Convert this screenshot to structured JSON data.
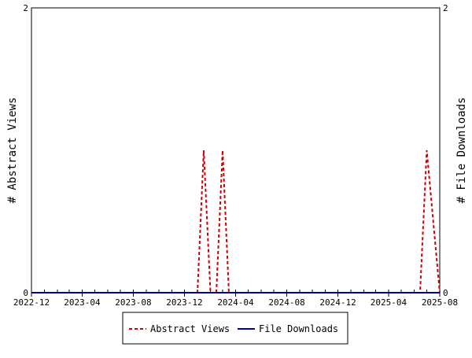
{
  "chart_data": {
    "type": "line",
    "title": "",
    "xlabel": "",
    "ylabel_left": "# Abstract Views",
    "ylabel_right": "# File Downloads",
    "ylim_left": [
      0,
      2
    ],
    "ylim_right": [
      0,
      2
    ],
    "yticks_left": [
      "0",
      "2"
    ],
    "yticks_right": [
      "0",
      "2"
    ],
    "x_domain": [
      "2022-12-01",
      "2025-08-01"
    ],
    "x_tick_labels": [
      {
        "date": "2022-12-01",
        "label": "2022-12"
      },
      {
        "date": "2023-04-01",
        "label": "2023-04"
      },
      {
        "date": "2023-08-01",
        "label": "2023-08"
      },
      {
        "date": "2023-12-01",
        "label": "2023-12"
      },
      {
        "date": "2024-04-01",
        "label": "2024-04"
      },
      {
        "date": "2024-08-01",
        "label": "2024-08"
      },
      {
        "date": "2024-12-01",
        "label": "2024-12"
      },
      {
        "date": "2025-04-01",
        "label": "2025-04"
      },
      {
        "date": "2025-08-01",
        "label": "2025-08"
      }
    ],
    "grid": false,
    "legend_position": "bottom",
    "series": [
      {
        "name": "Abstract Views",
        "color": "#cc0000",
        "style": "dashed",
        "axis": "left",
        "points": [
          {
            "x": "2022-12-01",
            "y": 0
          },
          {
            "x": "2024-01-01",
            "y": 0
          },
          {
            "x": "2024-01-16",
            "y": 1
          },
          {
            "x": "2024-02-01",
            "y": 0
          },
          {
            "x": "2024-02-15",
            "y": 0
          },
          {
            "x": "2024-03-01",
            "y": 1
          },
          {
            "x": "2024-03-16",
            "y": 0
          },
          {
            "x": "2025-06-15",
            "y": 0
          },
          {
            "x": "2025-07-01",
            "y": 1
          },
          {
            "x": "2025-08-01",
            "y": 0
          }
        ]
      },
      {
        "name": "File Downloads",
        "color": "#000099",
        "style": "solid",
        "axis": "right",
        "points": [
          {
            "x": "2022-12-01",
            "y": 0
          },
          {
            "x": "2025-08-01",
            "y": 0
          }
        ]
      }
    ]
  }
}
